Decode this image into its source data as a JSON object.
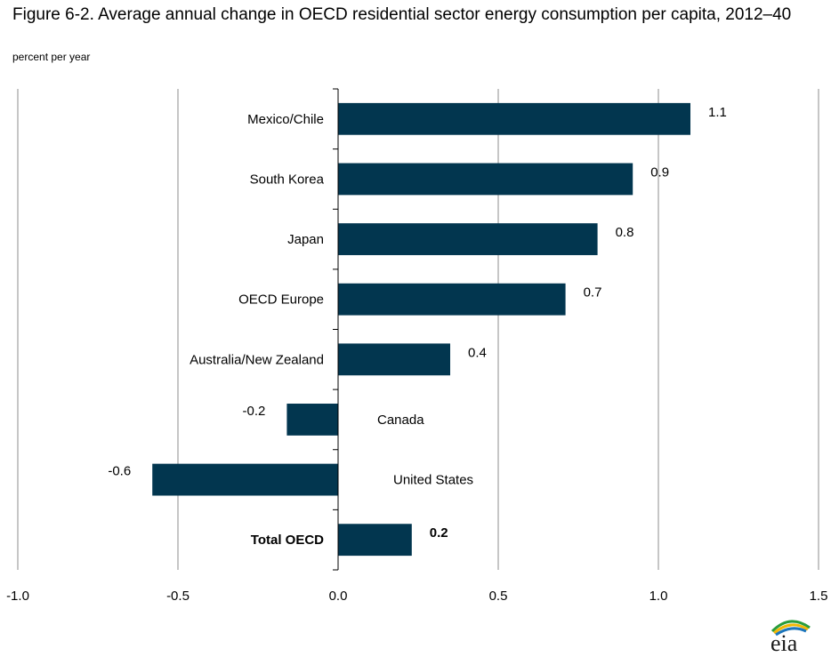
{
  "title": "Figure 6-2. Average annual change in OECD residential sector energy consumption per capita, 2012–40",
  "subtitle": "percent per year",
  "logo": {
    "text": "eia"
  },
  "colors": {
    "bar": "#02364f",
    "grid": "#8c8c8c",
    "axis": "#000000"
  },
  "chart_data": {
    "type": "bar",
    "orientation": "horizontal",
    "categories": [
      "Mexico/Chile",
      "South Korea",
      "Japan",
      "OECD Europe",
      "Australia/New Zealand",
      "Canada",
      "United States",
      "Total OECD"
    ],
    "values": [
      1.1,
      0.92,
      0.81,
      0.71,
      0.35,
      -0.16,
      -0.58,
      0.23
    ],
    "data_labels": [
      "1.1",
      "0.9",
      "0.8",
      "0.7",
      "0.4",
      "-0.2",
      "-0.6",
      "0.2"
    ],
    "bold_categories": [
      "Total OECD"
    ],
    "xlim": [
      -1.0,
      1.5
    ],
    "xticks": [
      -1.0,
      -0.5,
      0.0,
      0.5,
      1.0,
      1.5
    ],
    "xtick_labels": [
      "-1.0",
      "-0.5",
      "0.0",
      "0.5",
      "1.0",
      "1.5"
    ],
    "grid": "vertical",
    "xlabel": "",
    "ylabel": ""
  }
}
